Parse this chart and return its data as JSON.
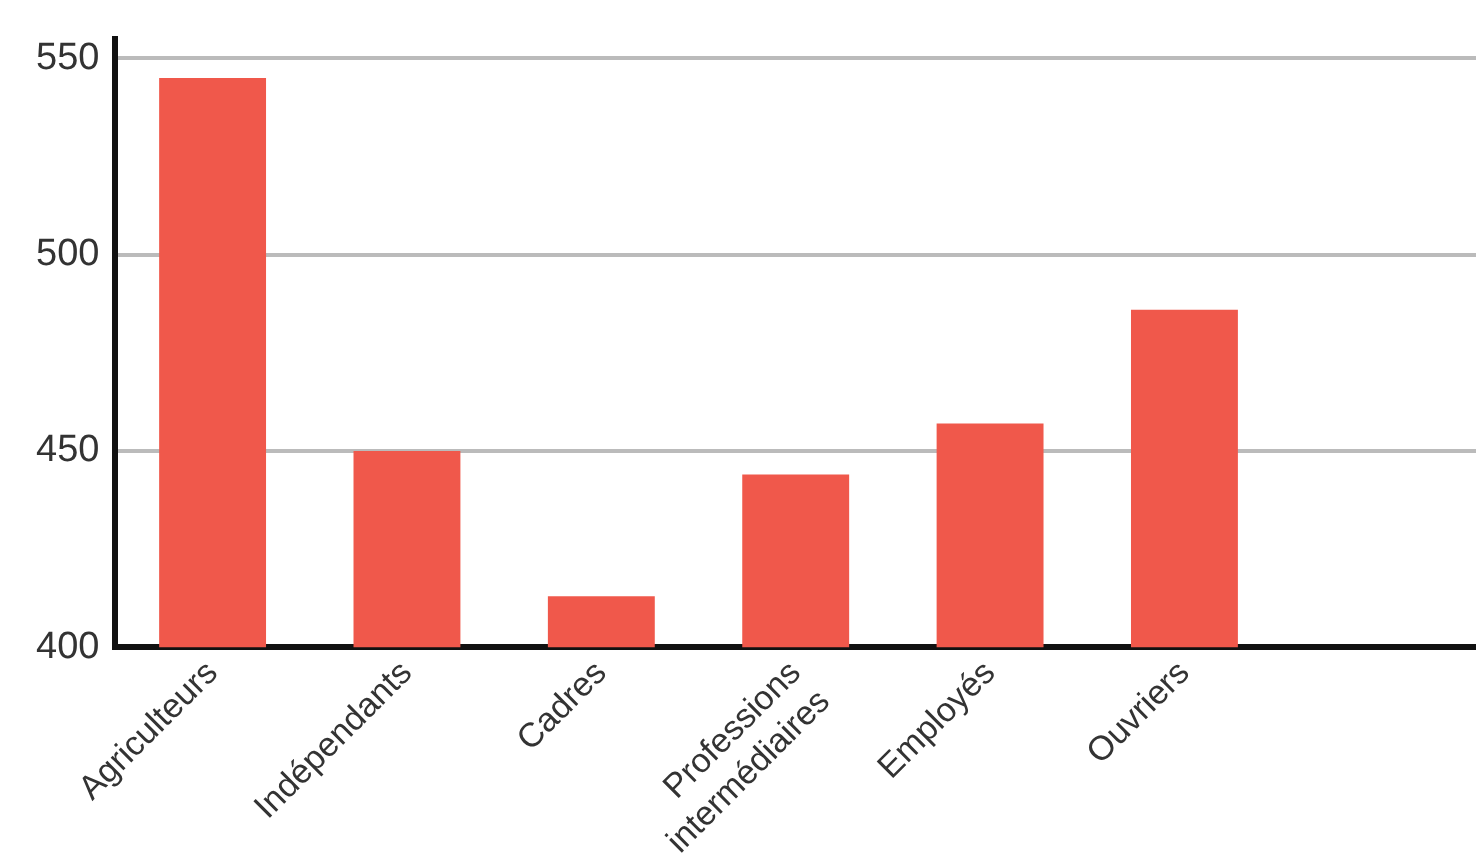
{
  "chart_data": {
    "type": "bar",
    "categories": [
      "Agriculteurs",
      "Indépendants",
      "Cadres",
      "Professions intermédiaires",
      "Employés",
      "Ouvriers",
      null
    ],
    "values": [
      545,
      450,
      413,
      444,
      457,
      486,
      null
    ],
    "color": "#f0584b",
    "ylim": [
      400,
      555
    ],
    "yticks": [
      400,
      450,
      500,
      550
    ],
    "grid": "y",
    "legend": false
  }
}
